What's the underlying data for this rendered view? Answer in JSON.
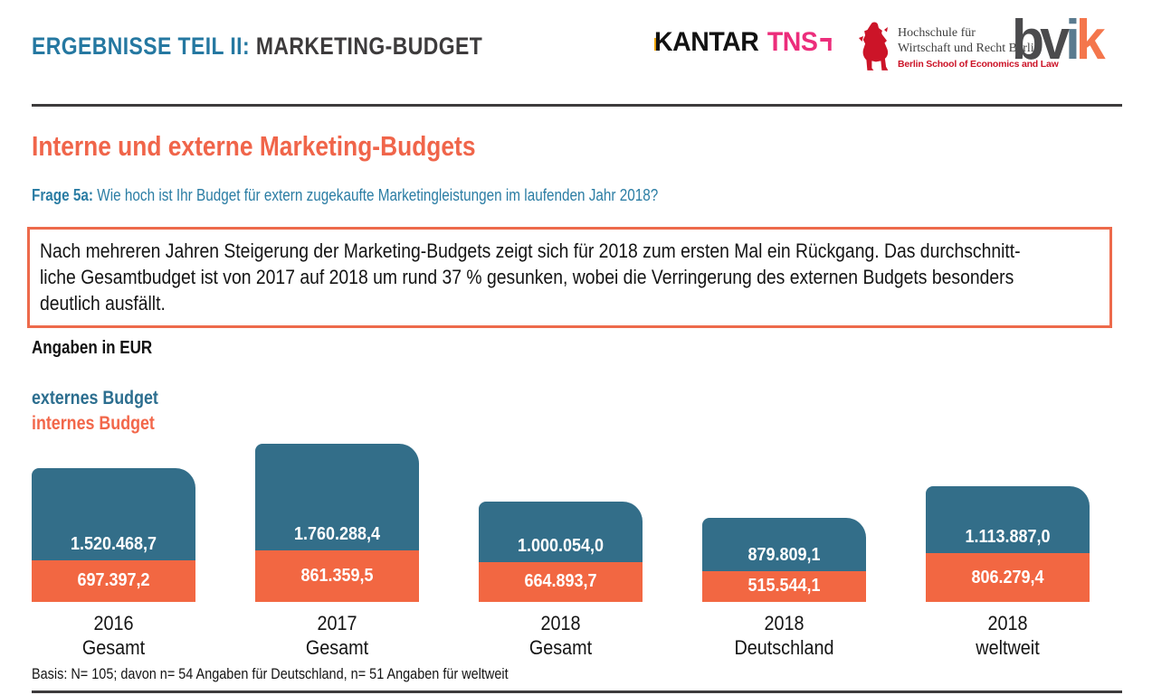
{
  "header": {
    "title_highlight": "ERGEBNISSE TEIL II:",
    "title_rest": "MARKETING-BUDGET",
    "logos": {
      "kantar": {
        "word1": "KANTAR",
        "word2": "TNS"
      },
      "hwr": {
        "line1": "Hochschule für",
        "line2": "Wirtschaft und Recht Berlin",
        "line3": "Berlin School of Economics and Law"
      },
      "bvik": {
        "part1": "bv",
        "part2": "i",
        "part3": "k"
      }
    }
  },
  "section": {
    "heading": "Interne und externe Marketing-Budgets",
    "question_label": "Frage 5a:",
    "question_text": "Wie hoch ist Ihr Budget für extern zugekaufte Marketingleistungen im laufenden Jahr 2018?"
  },
  "note": {
    "lines": [
      "Nach mehreren Jahren Steigerung der Marketing-Budgets zeigt sich für 2018 zum ersten Mal ein Rückgang. Das durchschnitt-",
      "liche Gesamtbudget ist von 2017 auf 2018 um rund 37 % gesunken, wobei die Verringerung des externen Budgets besonders",
      "deutlich ausfällt."
    ]
  },
  "chart_data": {
    "type": "bar",
    "stacked": true,
    "units_label": "Angaben in EUR",
    "legend": [
      {
        "name": "externes Budget",
        "color": "#2c6e8f"
      },
      {
        "name": "internes Budget",
        "color": "#f2674a"
      }
    ],
    "categories": [
      [
        "2016",
        "Gesamt"
      ],
      [
        "2017",
        "Gesamt"
      ],
      [
        "2018",
        "Gesamt"
      ],
      [
        "2018",
        "Deutschland"
      ],
      [
        "2018",
        "weltweit"
      ]
    ],
    "series": [
      {
        "name": "externes Budget",
        "color": "#336e89",
        "values": [
          1520468.7,
          1760288.4,
          1000054.0,
          879809.1,
          1113887.0
        ],
        "labels": [
          "1.520.468,7",
          "1.760.288,4",
          "1.000.054,0",
          "879.809,1",
          "1.113.887,0"
        ]
      },
      {
        "name": "internes Budget",
        "color": "#f26742",
        "values": [
          697397.2,
          861359.5,
          664893.7,
          515544.1,
          806279.4
        ],
        "labels": [
          "697.397,2",
          "861.359,5",
          "664.893,7",
          "515.544,1",
          "806.279,4"
        ]
      }
    ],
    "basis": "Basis: N= 105; davon n= 54 Angaben für Deutschland, n= 51 Angaben für weltweit"
  }
}
